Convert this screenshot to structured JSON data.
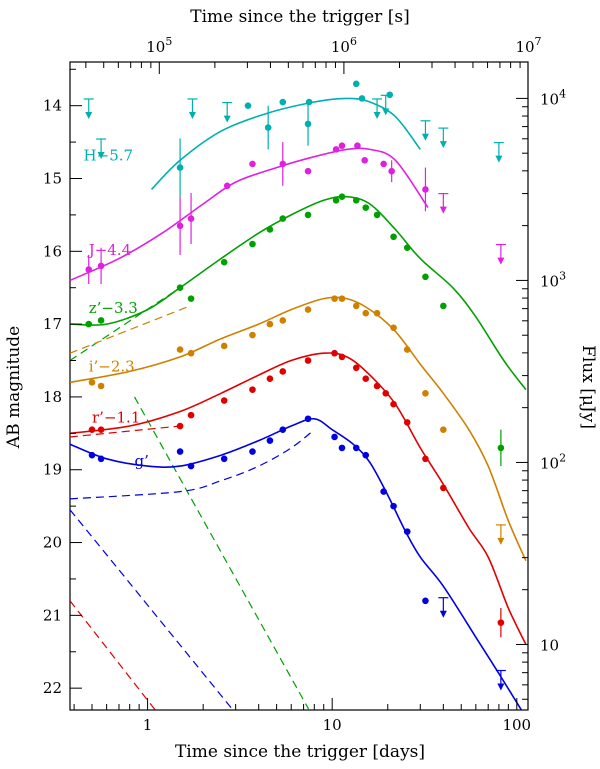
{
  "chart_data": {
    "type": "scatter",
    "xscale": "log",
    "xlim": [
      0.38,
      115
    ],
    "ylim": [
      22.3,
      13.4
    ],
    "yinverted": true,
    "xlabel": "Time since the trigger [days]",
    "ylabel": "AB magnitude",
    "top_xlabel": "Time since the trigger [s]",
    "right_ylabel": "Flux [μJy]",
    "bottom_ticks": [
      {
        "value": 1,
        "label": "1"
      },
      {
        "value": 10,
        "label": "10"
      },
      {
        "value": 100,
        "label": "100"
      }
    ],
    "left_ticks": [
      {
        "value": 14,
        "label": "14"
      },
      {
        "value": 15,
        "label": "15"
      },
      {
        "value": 16,
        "label": "16"
      },
      {
        "value": 17,
        "label": "17"
      },
      {
        "value": 18,
        "label": "18"
      },
      {
        "value": 19,
        "label": "19"
      },
      {
        "value": 20,
        "label": "20"
      },
      {
        "value": 21,
        "label": "21"
      },
      {
        "value": 22,
        "label": "22"
      }
    ],
    "top_ticks": [
      {
        "value": 100000,
        "label_base": "10",
        "label_exp": "5"
      },
      {
        "value": 1000000,
        "label_base": "10",
        "label_exp": "6"
      },
      {
        "value": 10000000,
        "label_base": "10",
        "label_exp": "7"
      }
    ],
    "right_ticks": [
      {
        "value": 10,
        "label_base": "10",
        "label_exp": ""
      },
      {
        "value": 100,
        "label_base": "10",
        "label_exp": "2"
      },
      {
        "value": 1000,
        "label_base": "10",
        "label_exp": "3"
      },
      {
        "value": 10000,
        "label_base": "10",
        "label_exp": "4"
      }
    ],
    "series": [
      {
        "name": "H−5.7",
        "color": "#00b0b0",
        "label_pos": [
          0.45,
          14.75
        ],
        "points": [
          [
            1.5,
            14.85,
            0.4
          ],
          [
            3.5,
            14.0,
            0
          ],
          [
            4.5,
            14.3,
            0.3
          ],
          [
            5.4,
            13.95,
            0
          ],
          [
            7.4,
            14.25,
            0.3
          ],
          [
            7.5,
            13.95,
            0
          ],
          [
            13.5,
            13.7,
            0
          ],
          [
            14.5,
            13.9,
            0
          ],
          [
            20.5,
            13.85,
            0
          ]
        ],
        "limits": [
          [
            0.48,
            14.1
          ],
          [
            0.56,
            14.65
          ],
          [
            1.75,
            14.1
          ],
          [
            2.7,
            14.15
          ],
          [
            17.5,
            14.1
          ],
          [
            19.5,
            14.05
          ],
          [
            32,
            14.4
          ],
          [
            40,
            14.5
          ],
          [
            80,
            14.7
          ]
        ],
        "curve": [
          [
            1.05,
            15.15
          ],
          [
            1.5,
            14.75
          ],
          [
            2.5,
            14.35
          ],
          [
            4.5,
            14.1
          ],
          [
            8,
            13.95
          ],
          [
            12,
            13.9
          ],
          [
            16,
            13.95
          ],
          [
            22,
            14.15
          ],
          [
            30,
            14.6
          ]
        ],
        "dashed": []
      },
      {
        "name": "J−4.4",
        "color": "#e020e0",
        "label_pos": [
          0.48,
          16.05
        ],
        "points": [
          [
            0.48,
            16.25,
            0.2
          ],
          [
            0.56,
            16.2,
            0.25
          ],
          [
            1.5,
            15.65,
            0.4
          ],
          [
            1.72,
            15.55,
            0.35
          ],
          [
            2.7,
            15.1,
            0
          ],
          [
            3.7,
            14.8,
            0
          ],
          [
            5.4,
            14.8,
            0.3
          ],
          [
            7.4,
            14.9,
            0
          ],
          [
            10.5,
            14.6,
            0
          ],
          [
            11.3,
            14.55,
            0
          ],
          [
            13.7,
            14.55,
            0
          ],
          [
            15,
            14.75,
            0
          ],
          [
            19,
            14.8,
            0
          ],
          [
            21,
            14.9,
            0.15
          ],
          [
            32,
            15.15,
            0.3
          ]
        ],
        "limits": [
          [
            40,
            15.4
          ],
          [
            82,
            16.1
          ]
        ],
        "curve": [
          [
            0.38,
            16.4
          ],
          [
            0.7,
            16.1
          ],
          [
            1.2,
            15.75
          ],
          [
            2,
            15.35
          ],
          [
            3,
            15.05
          ],
          [
            5,
            14.85
          ],
          [
            8,
            14.7
          ],
          [
            12,
            14.6
          ],
          [
            16,
            14.6
          ],
          [
            22,
            14.75
          ],
          [
            33,
            15.4
          ]
        ],
        "dashed": []
      },
      {
        "name": "z’−3.3",
        "color": "#00a000",
        "label_pos": [
          0.48,
          16.85
        ],
        "points": [
          [
            0.48,
            17.0,
            0
          ],
          [
            0.56,
            16.95,
            0
          ],
          [
            1.5,
            16.5,
            0
          ],
          [
            1.72,
            16.65,
            0
          ],
          [
            2.6,
            16.15,
            0
          ],
          [
            3.7,
            15.9,
            0
          ],
          [
            4.6,
            15.7,
            0
          ],
          [
            5.4,
            15.55,
            0
          ],
          [
            7.4,
            15.5,
            0
          ],
          [
            10.5,
            15.3,
            0
          ],
          [
            11.3,
            15.25,
            0
          ],
          [
            13.5,
            15.3,
            0
          ],
          [
            15.2,
            15.4,
            0
          ],
          [
            17.5,
            15.5,
            0
          ],
          [
            21.5,
            15.8,
            0
          ],
          [
            25.5,
            15.95,
            0
          ],
          [
            32,
            16.35,
            0
          ],
          [
            40,
            16.75,
            0
          ],
          [
            82,
            18.7,
            0.25
          ]
        ],
        "limits": [],
        "curve": [
          [
            0.38,
            17.0
          ],
          [
            0.6,
            17.0
          ],
          [
            1.0,
            16.8
          ],
          [
            1.5,
            16.5
          ],
          [
            2.5,
            16.1
          ],
          [
            4,
            15.75
          ],
          [
            6,
            15.5
          ],
          [
            9,
            15.3
          ],
          [
            12,
            15.25
          ],
          [
            16,
            15.35
          ],
          [
            22,
            15.7
          ],
          [
            30,
            16.1
          ],
          [
            45,
            16.5
          ],
          [
            60,
            16.9
          ],
          [
            85,
            17.5
          ],
          [
            112,
            17.9
          ]
        ],
        "dashed": [
          [
            [
              0.38,
              17.5
            ],
            [
              1.5,
              16.5
            ]
          ],
          [
            [
              0.85,
              18.0
            ],
            [
              7.5,
              22.3
            ]
          ]
        ]
      },
      {
        "name": "i’−2.3",
        "color": "#d08000",
        "label_pos": [
          0.48,
          17.65
        ],
        "points": [
          [
            0.5,
            17.8,
            0
          ],
          [
            0.56,
            17.85,
            0
          ],
          [
            1.5,
            17.35,
            0
          ],
          [
            1.72,
            17.4,
            0
          ],
          [
            2.6,
            17.3,
            0
          ],
          [
            3.7,
            17.15,
            0
          ],
          [
            4.6,
            17.0,
            0
          ],
          [
            5.4,
            16.95,
            0
          ],
          [
            7.4,
            16.8,
            0
          ],
          [
            10.3,
            16.65,
            0
          ],
          [
            11.3,
            16.65,
            0
          ],
          [
            13.5,
            16.75,
            0
          ],
          [
            15.2,
            16.85,
            0
          ],
          [
            17.5,
            16.85,
            0
          ],
          [
            21.5,
            17.05,
            0
          ],
          [
            25.5,
            17.35,
            0
          ],
          [
            32,
            17.95,
            0
          ],
          [
            40,
            18.45,
            0
          ]
        ],
        "limits": [
          [
            82,
            19.95
          ]
        ],
        "curve": [
          [
            0.38,
            17.8
          ],
          [
            0.8,
            17.65
          ],
          [
            1.5,
            17.45
          ],
          [
            2.5,
            17.2
          ],
          [
            4,
            17.0
          ],
          [
            6,
            16.8
          ],
          [
            9,
            16.65
          ],
          [
            12,
            16.65
          ],
          [
            16,
            16.8
          ],
          [
            22,
            17.1
          ],
          [
            30,
            17.55
          ],
          [
            40,
            17.95
          ],
          [
            55,
            18.45
          ],
          [
            70,
            18.95
          ],
          [
            90,
            19.7
          ],
          [
            112,
            20.25
          ]
        ],
        "dashed": [
          [
            [
              0.38,
              17.4
            ],
            [
              1.7,
              16.75
            ]
          ]
        ]
      },
      {
        "name": "r’−1.1",
        "color": "#e00000",
        "label_pos": [
          0.5,
          18.35
        ],
        "points": [
          [
            0.5,
            18.45,
            0
          ],
          [
            0.56,
            18.45,
            0
          ],
          [
            1.5,
            18.4,
            0
          ],
          [
            1.72,
            18.25,
            0
          ],
          [
            2.6,
            18.05,
            0
          ],
          [
            3.7,
            17.9,
            0
          ],
          [
            4.6,
            17.75,
            0
          ],
          [
            5.4,
            17.65,
            0
          ],
          [
            7.4,
            17.5,
            0
          ],
          [
            10.3,
            17.4,
            0
          ],
          [
            11.3,
            17.45,
            0
          ],
          [
            13.5,
            17.6,
            0
          ],
          [
            15.2,
            17.75,
            0
          ],
          [
            17.5,
            17.85,
            0
          ],
          [
            19.5,
            17.95,
            0
          ],
          [
            21.5,
            18.1,
            0
          ],
          [
            25.5,
            18.35,
            0
          ],
          [
            32,
            18.85,
            0
          ],
          [
            40,
            19.25,
            0
          ],
          [
            82,
            21.1,
            0.2
          ]
        ],
        "limits": [],
        "curve": [
          [
            0.38,
            18.5
          ],
          [
            0.8,
            18.4
          ],
          [
            1.5,
            18.2
          ],
          [
            2.5,
            17.95
          ],
          [
            4,
            17.7
          ],
          [
            6,
            17.5
          ],
          [
            9,
            17.4
          ],
          [
            12,
            17.45
          ],
          [
            16,
            17.7
          ],
          [
            22,
            18.1
          ],
          [
            30,
            18.7
          ],
          [
            40,
            19.2
          ],
          [
            55,
            19.8
          ],
          [
            70,
            20.2
          ],
          [
            90,
            20.9
          ],
          [
            112,
            21.4
          ]
        ],
        "dashed": [
          [
            [
              0.38,
              18.55
            ],
            [
              1.5,
              18.4
            ]
          ],
          [
            [
              0.38,
              20.8
            ],
            [
              1.1,
              22.3
            ]
          ]
        ]
      },
      {
        "name": "g’",
        "color": "#0000e0",
        "label_pos": [
          0.85,
          18.95
        ],
        "points": [
          [
            0.5,
            18.8,
            0
          ],
          [
            0.56,
            18.85,
            0
          ],
          [
            1.5,
            18.75,
            0
          ],
          [
            1.72,
            18.95,
            0
          ],
          [
            2.6,
            18.85,
            0
          ],
          [
            3.7,
            18.75,
            0
          ],
          [
            4.6,
            18.6,
            0
          ],
          [
            5.4,
            18.45,
            0
          ],
          [
            7.4,
            18.3,
            0
          ],
          [
            10.3,
            18.55,
            0
          ],
          [
            11.3,
            18.7,
            0
          ],
          [
            13.5,
            18.7,
            0
          ],
          [
            15.2,
            18.8,
            0
          ],
          [
            19,
            19.3,
            0
          ],
          [
            21.5,
            19.5,
            0
          ],
          [
            25.5,
            19.85,
            0
          ],
          [
            32,
            20.8,
            0
          ]
        ],
        "limits": [
          [
            40,
            20.95
          ],
          [
            82,
            21.95
          ]
        ],
        "curve": [
          [
            0.38,
            18.65
          ],
          [
            0.6,
            18.85
          ],
          [
            1.0,
            18.95
          ],
          [
            1.5,
            18.95
          ],
          [
            2.5,
            18.8
          ],
          [
            4,
            18.6
          ],
          [
            6,
            18.4
          ],
          [
            8,
            18.3
          ],
          [
            10,
            18.45
          ],
          [
            13,
            18.65
          ],
          [
            16,
            18.9
          ],
          [
            20,
            19.35
          ],
          [
            25,
            19.85
          ],
          [
            30,
            20.2
          ],
          [
            40,
            20.6
          ],
          [
            60,
            21.3
          ],
          [
            80,
            21.8
          ],
          [
            112,
            22.4
          ]
        ],
        "dashed": [
          [
            [
              0.38,
              19.4
            ],
            [
              1.5,
              19.3
            ],
            [
              2.5,
              19.15
            ],
            [
              4,
              18.95
            ],
            [
              6,
              18.7
            ],
            [
              8,
              18.45
            ]
          ],
          [
            [
              0.38,
              19.55
            ],
            [
              2.9,
              22.3
            ]
          ]
        ]
      }
    ]
  }
}
